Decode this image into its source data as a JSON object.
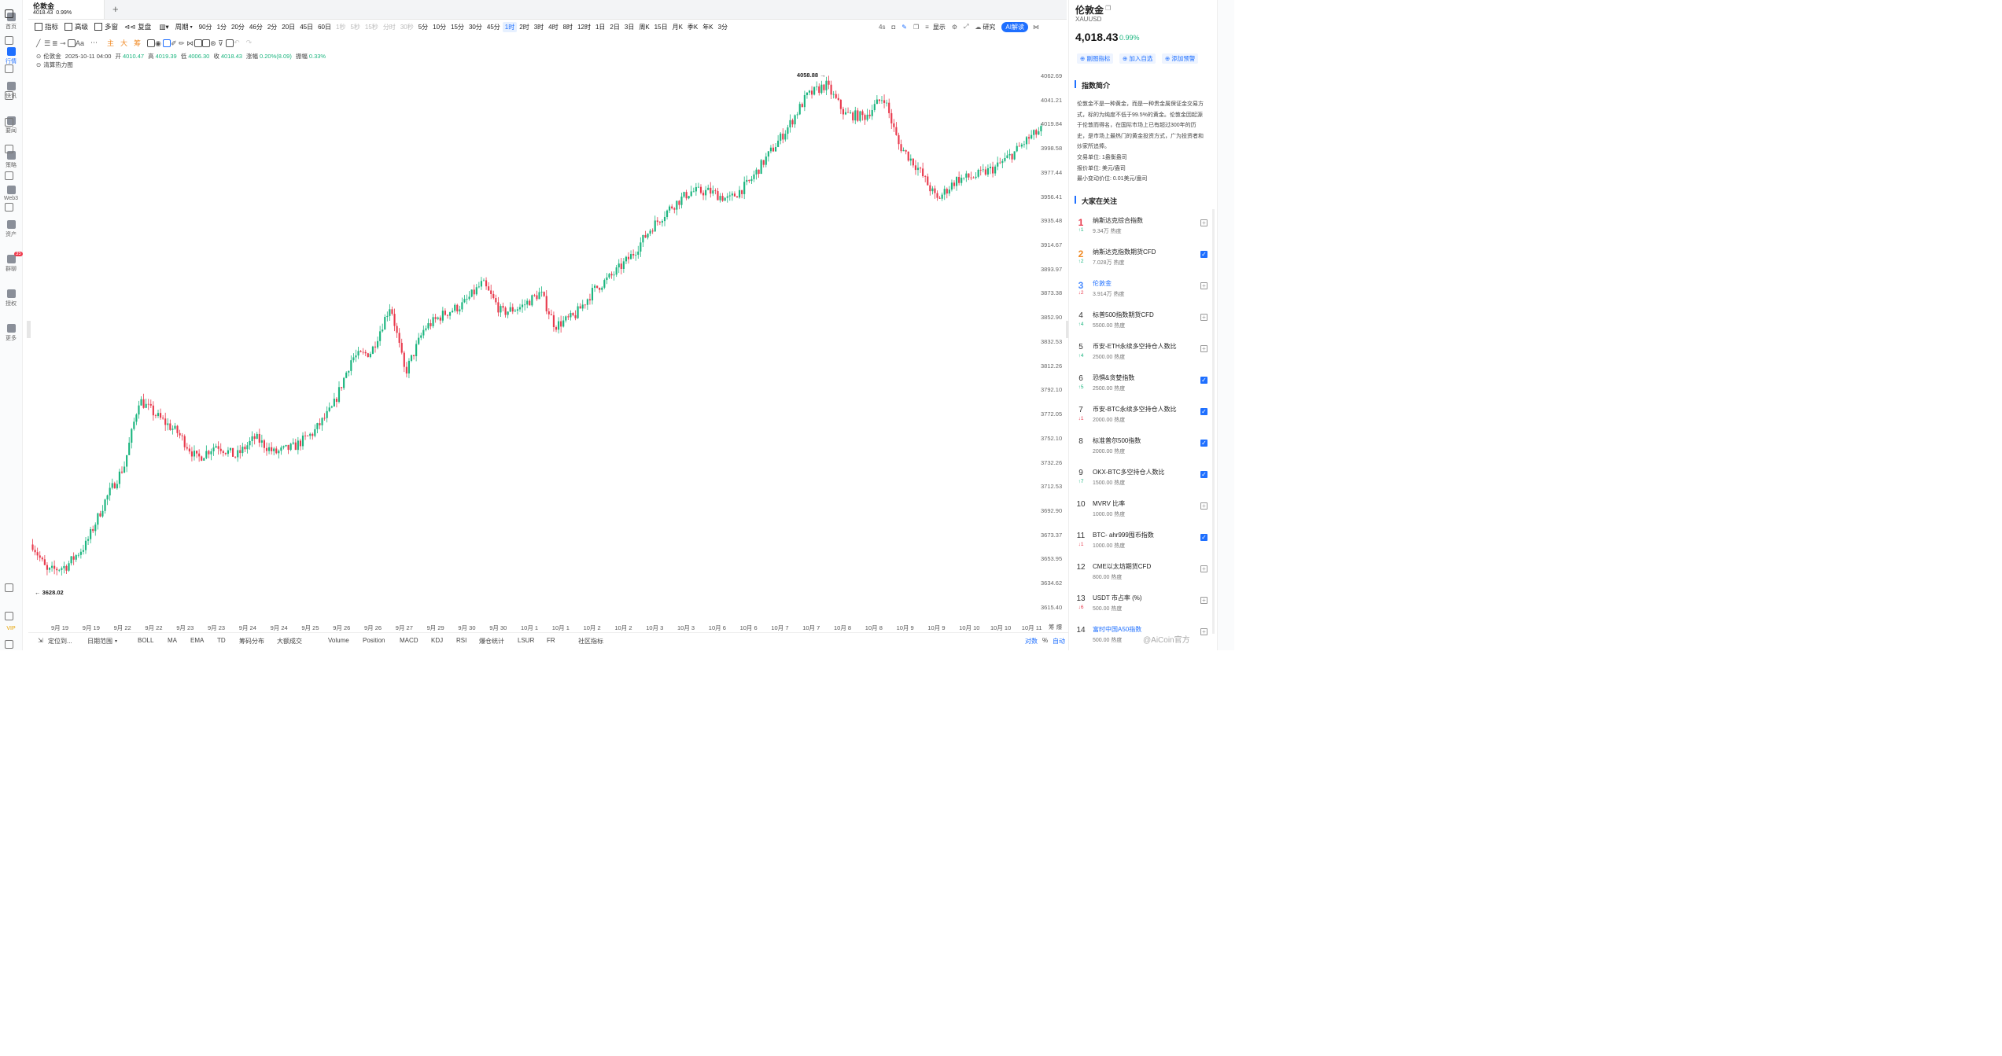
{
  "nav": {
    "items": [
      {
        "label": "首页",
        "active": false
      },
      {
        "label": "行情",
        "active": true
      },
      {
        "label": "快讯",
        "active": false
      },
      {
        "label": "要闻",
        "active": false
      },
      {
        "label": "策略",
        "active": false
      },
      {
        "label": "Web3",
        "active": false
      },
      {
        "label": "资产",
        "active": false
      },
      {
        "label": "群聊",
        "active": false,
        "badge": "35"
      },
      {
        "label": "授权",
        "active": false
      },
      {
        "label": "更多",
        "active": false
      }
    ],
    "vip": "VIP"
  },
  "tab": {
    "title": "伦敦金",
    "price": "4018.43",
    "change": "0.99%",
    "add": "+"
  },
  "toolbar": {
    "indicator": "指标",
    "advanced": "高级",
    "multi": "多窗",
    "replay": "复盘",
    "period": "周期",
    "periods": [
      {
        "l": "90分",
        "s": "n"
      },
      {
        "l": "1分",
        "s": "n"
      },
      {
        "l": "20分",
        "s": "n"
      },
      {
        "l": "46分",
        "s": "n"
      },
      {
        "l": "2分",
        "s": "n"
      },
      {
        "l": "20日",
        "s": "n"
      },
      {
        "l": "45日",
        "s": "n"
      },
      {
        "l": "60日",
        "s": "n"
      },
      {
        "l": "1秒",
        "s": "d"
      },
      {
        "l": "5秒",
        "s": "d"
      },
      {
        "l": "15秒",
        "s": "d"
      },
      {
        "l": "分时",
        "s": "d"
      },
      {
        "l": "30秒",
        "s": "d"
      },
      {
        "l": "5分",
        "s": "n"
      },
      {
        "l": "10分",
        "s": "n"
      },
      {
        "l": "15分",
        "s": "n"
      },
      {
        "l": "30分",
        "s": "n"
      },
      {
        "l": "45分",
        "s": "n"
      },
      {
        "l": "1时",
        "s": "a"
      },
      {
        "l": "2时",
        "s": "n"
      },
      {
        "l": "3时",
        "s": "n"
      },
      {
        "l": "4时",
        "s": "n"
      },
      {
        "l": "8时",
        "s": "n"
      },
      {
        "l": "12时",
        "s": "n"
      },
      {
        "l": "1日",
        "s": "n"
      },
      {
        "l": "2日",
        "s": "n"
      },
      {
        "l": "3日",
        "s": "n"
      },
      {
        "l": "周K",
        "s": "n"
      },
      {
        "l": "15日",
        "s": "n"
      },
      {
        "l": "月K",
        "s": "n"
      },
      {
        "l": "季K",
        "s": "n"
      },
      {
        "l": "年K",
        "s": "n"
      },
      {
        "l": "3分",
        "s": "n"
      }
    ],
    "right_time": "4s",
    "display": "显示",
    "research": "研究",
    "ai": "AI解读"
  },
  "drawbar": {
    "text": "Aa",
    "main": "主",
    "big": "大",
    "chou": "筹"
  },
  "info": {
    "name": "伦敦金",
    "time": "2025-10-11 04:00",
    "open_label": "开",
    "open": "4010.47",
    "high_label": "高",
    "high": "4019.39",
    "low_label": "低",
    "low": "4006.30",
    "close_label": "收",
    "close": "4018.43",
    "chg_label": "涨幅",
    "chg": "0.20%(8.09)",
    "amp_label": "振幅",
    "amp": "0.33%",
    "heatmap": "清算热力图"
  },
  "chart_data": {
    "type": "candlestick",
    "y_ticks": [
      "4062.69",
      "4041.21",
      "4019.84",
      "3998.58",
      "3977.44",
      "3956.41",
      "3935.48",
      "3914.67",
      "3893.97",
      "3873.38",
      "3852.90",
      "3832.53",
      "3812.26",
      "3792.10",
      "3772.05",
      "3752.10",
      "3732.26",
      "3712.53",
      "3692.90",
      "3673.37",
      "3653.95",
      "3634.62",
      "3615.40"
    ],
    "x_ticks": [
      "9月 19",
      "9月 19",
      "9月 22",
      "9月 22",
      "9月 23",
      "9月 23",
      "9月 24",
      "9月 24",
      "9月 25",
      "9月 26",
      "9月 26",
      "9月 27",
      "9月 29",
      "9月 30",
      "9月 30",
      "10月 1",
      "10月 1",
      "10月 2",
      "10月 2",
      "10月 3",
      "10月 3",
      "10月 6",
      "10月 6",
      "10月 7",
      "10月 7",
      "10月 8",
      "10月 8",
      "10月 9",
      "10月 9",
      "10月 10",
      "10月 10",
      "10月 11"
    ],
    "ylim": [
      3615.4,
      4062.69
    ],
    "high_mark": "4058.88",
    "low_mark": "3628.02",
    "path": [
      [
        0,
        3668
      ],
      [
        6,
        3645
      ],
      [
        14,
        3650
      ],
      [
        22,
        3668
      ],
      [
        30,
        3705
      ],
      [
        38,
        3735
      ],
      [
        44,
        3790
      ],
      [
        52,
        3775
      ],
      [
        60,
        3762
      ],
      [
        68,
        3740
      ],
      [
        76,
        3752
      ],
      [
        84,
        3742
      ],
      [
        92,
        3758
      ],
      [
        100,
        3745
      ],
      [
        108,
        3750
      ],
      [
        116,
        3762
      ],
      [
        124,
        3783
      ],
      [
        132,
        3825
      ],
      [
        140,
        3830
      ],
      [
        148,
        3870
      ],
      [
        154,
        3812
      ],
      [
        162,
        3850
      ],
      [
        170,
        3862
      ],
      [
        178,
        3870
      ],
      [
        186,
        3888
      ],
      [
        194,
        3863
      ],
      [
        202,
        3868
      ],
      [
        210,
        3880
      ],
      [
        216,
        3852
      ],
      [
        224,
        3860
      ],
      [
        232,
        3882
      ],
      [
        240,
        3895
      ],
      [
        248,
        3912
      ],
      [
        256,
        3935
      ],
      [
        264,
        3952
      ],
      [
        272,
        3965
      ],
      [
        280,
        3965
      ],
      [
        288,
        3958
      ],
      [
        296,
        3972
      ],
      [
        304,
        3995
      ],
      [
        312,
        4018
      ],
      [
        320,
        4045
      ],
      [
        328,
        4055
      ],
      [
        336,
        4030
      ],
      [
        344,
        4028
      ],
      [
        352,
        4045
      ],
      [
        358,
        4005
      ],
      [
        366,
        3985
      ],
      [
        374,
        3958
      ],
      [
        382,
        3975
      ],
      [
        390,
        3978
      ],
      [
        398,
        3985
      ],
      [
        406,
        3998
      ],
      [
        412,
        4010
      ],
      [
        418,
        4018
      ]
    ],
    "n_candles": 420
  },
  "bottombar": {
    "locate": "定位到...",
    "date_range": "日期范围",
    "indicators": [
      "BOLL",
      "MA",
      "EMA",
      "TD",
      "筹码分布",
      "大额成交",
      "Volume",
      "Position",
      "MACD",
      "KDJ",
      "RSI",
      "爆仓统计",
      "LSUR",
      "FR",
      "社区指标"
    ],
    "log": "对数",
    "pct": "%",
    "auto": "自动",
    "corner": "筹 爆"
  },
  "right": {
    "title": "伦敦金",
    "code": "XAUUSD",
    "price": "4,018.43",
    "change": "0.99%",
    "buttons": [
      "副图指标",
      "加入自选",
      "添加预警"
    ],
    "intro_title": "指数简介",
    "intro_lines": [
      "伦敦金不是一种黄金，而是一种贵金属保证金交易方",
      "式，标的为纯度不低于99.5%的黄金。伦敦金因起源",
      "于伦敦而得名，在国际市场上已有超过300年的历",
      "史，是市场上最热门的黄金投资方式，广为投资者和",
      "炒家所追捧。"
    ],
    "specs": [
      "交易单位:  1盎衡盎司",
      "报价单位:  美元/盎司",
      "最小变动价位:  0.01美元/盎司"
    ],
    "hot_title": "大家在关注",
    "hot": [
      {
        "rank": "1",
        "chg": "↑1",
        "up": true,
        "name": "纳斯达克综合指数",
        "heat": "9.34万 热度",
        "checked": false
      },
      {
        "rank": "2",
        "chg": "↑2",
        "up": true,
        "name": "纳斯达克指数期货CFD",
        "heat": "7.028万 热度",
        "checked": true
      },
      {
        "rank": "3",
        "chg": "↓2",
        "up": false,
        "name": "伦敦金",
        "heat": "3.914万 热度",
        "checked": false,
        "current": true
      },
      {
        "rank": "4",
        "chg": "↑4",
        "up": true,
        "name": "标普500指数期货CFD",
        "heat": "5500.00 热度",
        "checked": false
      },
      {
        "rank": "5",
        "chg": "↑4",
        "up": true,
        "name": "币安-ETH永续多空持仓人数比",
        "heat": "2500.00 热度",
        "checked": false
      },
      {
        "rank": "6",
        "chg": "↑5",
        "up": true,
        "name": "恐惧&贪婪指数",
        "heat": "2500.00 热度",
        "checked": true
      },
      {
        "rank": "7",
        "chg": "↓1",
        "up": false,
        "name": "币安-BTC永续多空持仓人数比",
        "heat": "2000.00 热度",
        "checked": true
      },
      {
        "rank": "8",
        "chg": "",
        "up": true,
        "name": "标准普尔500指数",
        "heat": "2000.00 热度",
        "checked": true
      },
      {
        "rank": "9",
        "chg": "↑7",
        "up": true,
        "name": "OKX-BTC多空持仓人数比",
        "heat": "1500.00 热度",
        "checked": true
      },
      {
        "rank": "10",
        "chg": "",
        "up": true,
        "name": "MVRV 比率",
        "heat": "1000.00 热度",
        "checked": false
      },
      {
        "rank": "11",
        "chg": "↓1",
        "up": false,
        "name": "BTC- ahr999囤币指数",
        "heat": "1000.00 热度",
        "checked": true
      },
      {
        "rank": "12",
        "chg": "",
        "up": true,
        "name": "CME以太坊期货CFD",
        "heat": "800.00 热度",
        "checked": false
      },
      {
        "rank": "13",
        "chg": "↓6",
        "up": false,
        "name": "USDT 市占率 (%)",
        "heat": "500.00 热度",
        "checked": false
      },
      {
        "rank": "14",
        "chg": "",
        "up": true,
        "name": "富时中国A50指数",
        "heat": "500.00 热度",
        "checked": false,
        "current": true
      }
    ],
    "watermark": "@AiCoin官方"
  },
  "colors": {
    "up": "#1bb57f",
    "down": "#e83a4d",
    "accent": "#1e6fff"
  }
}
